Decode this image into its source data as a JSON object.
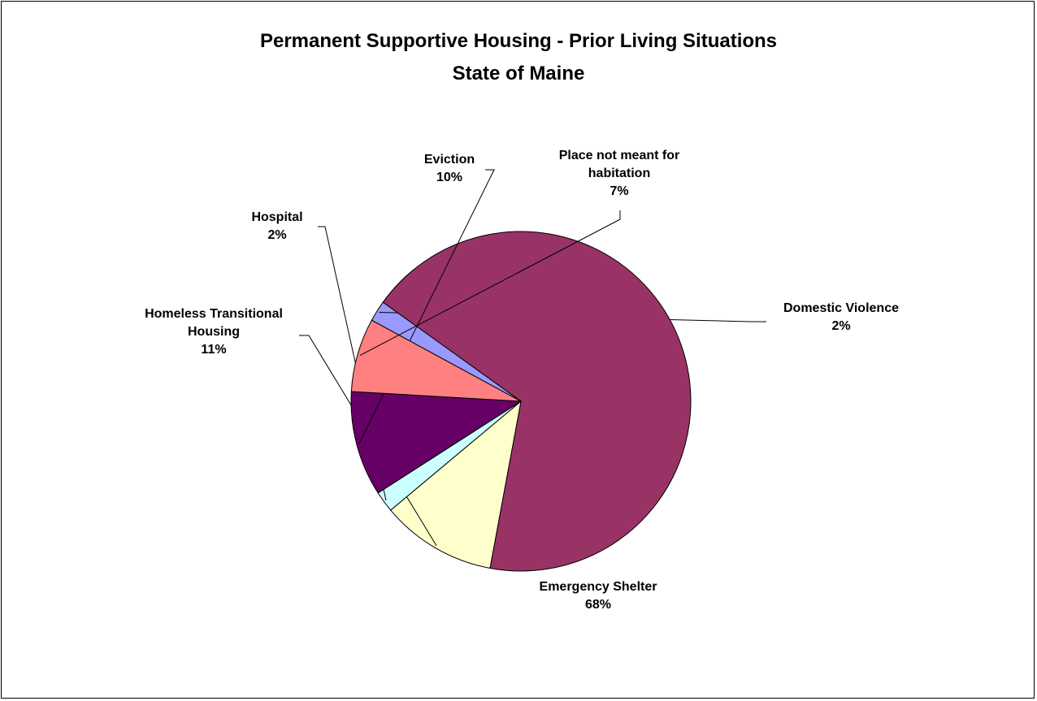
{
  "chart_data": {
    "type": "pie",
    "title": "Permanent Supportive Housing - Prior Living Situations",
    "subtitle": "State of Maine",
    "slices": [
      {
        "key": "dv",
        "label": [
          "Domestic Violence"
        ],
        "value": 2,
        "pct_label": "2%",
        "color": "#9999FF"
      },
      {
        "key": "es",
        "label": [
          "Emergency Shelter"
        ],
        "value": 68,
        "pct_label": "68%",
        "color": "#993366"
      },
      {
        "key": "htr",
        "label": [
          "Homeless Transitional",
          "Housing"
        ],
        "value": 11,
        "pct_label": "11%",
        "color": "#FFFFCC"
      },
      {
        "key": "hosp",
        "label": [
          "Hospital"
        ],
        "value": 2,
        "pct_label": "2%",
        "color": "#CCFFFF"
      },
      {
        "key": "evic",
        "label": [
          "Eviction"
        ],
        "value": 10,
        "pct_label": "10%",
        "color": "#660066"
      },
      {
        "key": "place",
        "label": [
          "Place not meant for",
          "habitation"
        ],
        "value": 7,
        "pct_label": "7%",
        "color": "#FF8080"
      }
    ]
  }
}
